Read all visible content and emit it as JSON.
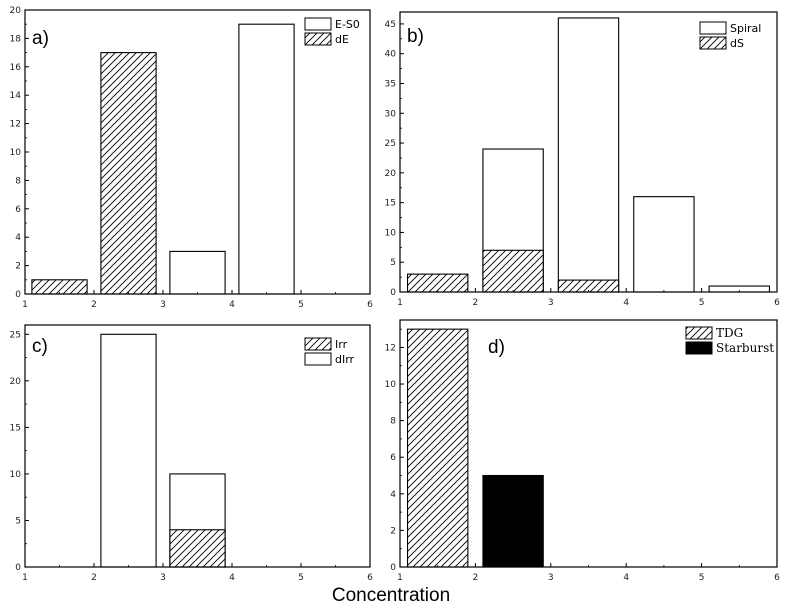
{
  "xlabel": "Concentration",
  "chart_data": [
    {
      "id": "a",
      "type": "bar",
      "panel_label": "a)",
      "xlim": [
        1,
        6
      ],
      "ylim": [
        0,
        20
      ],
      "xticks": [
        1,
        2,
        3,
        4,
        5,
        6
      ],
      "yticks": [
        0,
        2,
        4,
        6,
        8,
        10,
        12,
        14,
        16,
        18,
        20
      ],
      "legend_position": "top-right",
      "series": [
        {
          "name": "E-S0",
          "fill": "open",
          "bars": [
            {
              "x0": 3.1,
              "x1": 3.9,
              "value": 3
            },
            {
              "x0": 4.1,
              "x1": 4.9,
              "value": 19
            }
          ]
        },
        {
          "name": "dE",
          "fill": "hatched",
          "bars": [
            {
              "x0": 1.1,
              "x1": 1.9,
              "value": 1
            },
            {
              "x0": 2.1,
              "x1": 2.9,
              "value": 17
            }
          ]
        }
      ]
    },
    {
      "id": "b",
      "type": "bar",
      "panel_label": "b)",
      "xlim": [
        1,
        6
      ],
      "ylim": [
        0,
        47
      ],
      "xticks": [
        1,
        2,
        3,
        4,
        5,
        6
      ],
      "yticks": [
        0,
        5,
        10,
        15,
        20,
        25,
        30,
        35,
        40,
        45
      ],
      "legend_position": "top-right",
      "series": [
        {
          "name": "Spiral",
          "fill": "open",
          "bars": [
            {
              "x0": 2.1,
              "x1": 2.9,
              "value": 24
            },
            {
              "x0": 3.1,
              "x1": 3.9,
              "value": 46
            },
            {
              "x0": 4.1,
              "x1": 4.9,
              "value": 16
            },
            {
              "x0": 5.1,
              "x1": 5.9,
              "value": 1
            }
          ]
        },
        {
          "name": "dS",
          "fill": "hatched",
          "bars": [
            {
              "x0": 1.1,
              "x1": 1.9,
              "value": 3
            },
            {
              "x0": 2.1,
              "x1": 2.9,
              "value": 7
            },
            {
              "x0": 3.1,
              "x1": 3.9,
              "value": 2
            }
          ]
        }
      ]
    },
    {
      "id": "c",
      "type": "bar",
      "panel_label": "c)",
      "xlim": [
        1,
        6
      ],
      "ylim": [
        0,
        26
      ],
      "xticks": [
        1,
        2,
        3,
        4,
        5,
        6
      ],
      "yticks": [
        0,
        5,
        10,
        15,
        20,
        25
      ],
      "legend_position": "top-right",
      "series": [
        {
          "name": "Irr",
          "fill": "hatched",
          "bars": [
            {
              "x0": 3.1,
              "x1": 3.9,
              "value": 4
            }
          ]
        },
        {
          "name": "dIrr",
          "fill": "open",
          "bars": [
            {
              "x0": 2.1,
              "x1": 2.9,
              "value": 25
            },
            {
              "x0": 3.1,
              "x1": 3.9,
              "value": 10
            }
          ]
        }
      ]
    },
    {
      "id": "d",
      "type": "bar",
      "panel_label": "d)",
      "xlim": [
        1,
        6
      ],
      "ylim": [
        0,
        13.5
      ],
      "xticks": [
        1,
        2,
        3,
        4,
        5,
        6
      ],
      "yticks": [
        0,
        2,
        4,
        6,
        8,
        10,
        12
      ],
      "legend_position": "top-right",
      "legend_font": "serif",
      "series": [
        {
          "name": "TDG",
          "fill": "hatched",
          "bars": [
            {
              "x0": 1.1,
              "x1": 1.9,
              "value": 13
            }
          ]
        },
        {
          "name": "Starburst",
          "fill": "solid",
          "bars": [
            {
              "x0": 2.1,
              "x1": 2.9,
              "value": 5
            }
          ]
        }
      ]
    }
  ]
}
